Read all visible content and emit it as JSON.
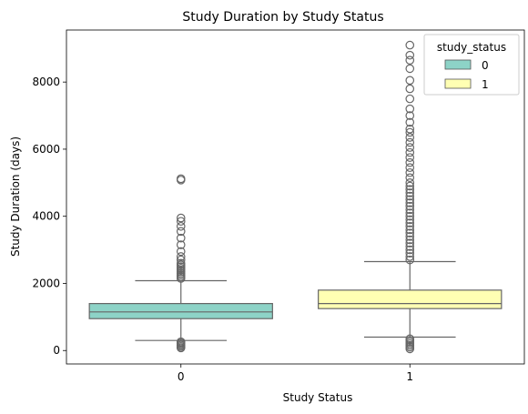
{
  "chart_data": {
    "type": "box",
    "title": "Study Duration by Study Status",
    "xlabel": "Study Status",
    "ylabel": "Study Duration (days)",
    "categories": [
      "0",
      "1"
    ],
    "ylim": [
      -400,
      9550
    ],
    "yticks": [
      0,
      2000,
      4000,
      6000,
      8000
    ],
    "grid": false,
    "legend": {
      "title": "study_status",
      "placement": "top-right",
      "entries": [
        {
          "label": "0",
          "color": "#8dd3c7"
        },
        {
          "label": "1",
          "color": "#ffffb3"
        }
      ]
    },
    "boxes": [
      {
        "category": "0",
        "color": "#8dd3c7",
        "whisker_low": 300,
        "q1": 950,
        "median": 1150,
        "q3": 1400,
        "whisker_high": 2080,
        "outliers": [
          80,
          120,
          160,
          200,
          230,
          260,
          2150,
          2200,
          2250,
          2300,
          2350,
          2400,
          2450,
          2500,
          2550,
          2600,
          2700,
          2800,
          2950,
          3150,
          3350,
          3550,
          3700,
          3850,
          3950,
          5080,
          5120
        ]
      },
      {
        "category": "1",
        "color": "#ffffb3",
        "whisker_low": 400,
        "q1": 1250,
        "median": 1400,
        "q3": 1800,
        "whisker_high": 2650,
        "outliers": [
          50,
          100,
          150,
          200,
          250,
          300,
          350,
          2700,
          2800,
          2900,
          3000,
          3100,
          3200,
          3300,
          3400,
          3500,
          3600,
          3700,
          3800,
          3900,
          4000,
          4100,
          4200,
          4300,
          4400,
          4500,
          4600,
          4700,
          4800,
          4900,
          5000,
          5150,
          5300,
          5450,
          5600,
          5750,
          5900,
          6050,
          6200,
          6350,
          6500,
          6600,
          6800,
          7000,
          7200,
          7500,
          7800,
          8050,
          8400,
          8650,
          8800,
          9100
        ]
      }
    ]
  }
}
